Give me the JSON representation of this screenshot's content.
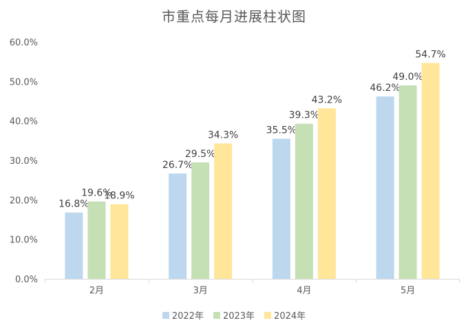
{
  "chart_data": {
    "type": "bar",
    "title": "市重点每月进展柱状图",
    "categories": [
      "2月",
      "3月",
      "4月",
      "5月"
    ],
    "series": [
      {
        "name": "2022年",
        "values": [
          16.8,
          26.7,
          35.5,
          46.2
        ],
        "color": "#bdd7ee"
      },
      {
        "name": "2023年",
        "values": [
          19.6,
          29.5,
          39.3,
          49.0
        ],
        "color": "#c5e0b4"
      },
      {
        "name": "2024年",
        "values": [
          18.9,
          34.3,
          43.2,
          54.7
        ],
        "color": "#ffe699"
      }
    ],
    "y_ticks": [
      "0.0%",
      "10.0%",
      "20.0%",
      "30.0%",
      "40.0%",
      "50.0%",
      "60.0%"
    ],
    "ylim": [
      0,
      60
    ],
    "value_suffix": "%",
    "legend_position": "bottom",
    "grid": false
  }
}
